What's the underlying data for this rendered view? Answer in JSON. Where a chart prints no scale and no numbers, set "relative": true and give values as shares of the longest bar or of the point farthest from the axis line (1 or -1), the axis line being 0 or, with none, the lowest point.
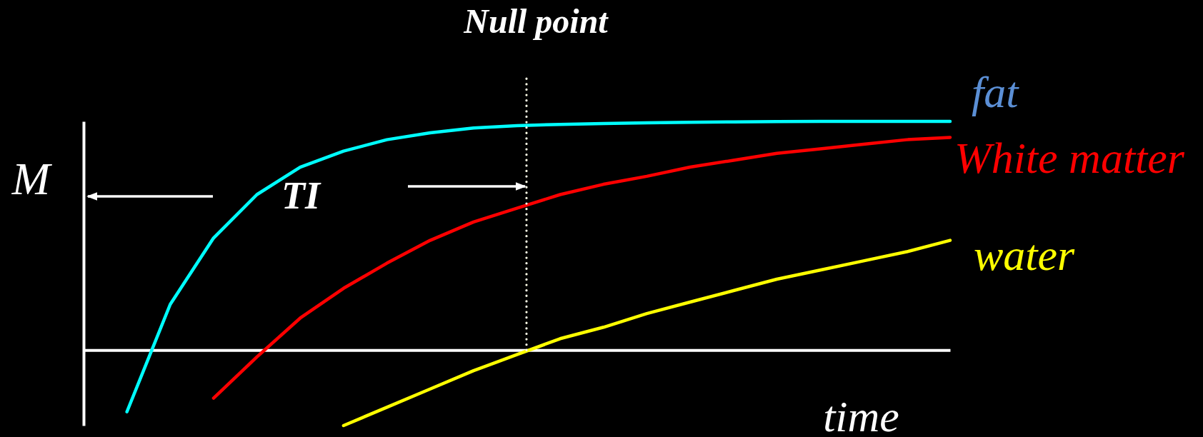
{
  "chart_data": {
    "type": "line",
    "relative": true,
    "xlabel": "time",
    "ylabel": "M",
    "categories": [
      null,
      null,
      null,
      null,
      null,
      null,
      null,
      null,
      null,
      null,
      null,
      null,
      null,
      null,
      null,
      null,
      null,
      null,
      null,
      null,
      null
    ],
    "series": [
      {
        "name": "fat",
        "color": "#00ffff",
        "values": [
          null,
          -0.27,
          0.2,
          0.49,
          0.68,
          0.8,
          0.87,
          0.92,
          0.95,
          0.971,
          0.981,
          0.987,
          0.991,
          0.994,
          0.996,
          0.998,
          0.999,
          1.0,
          1.0,
          1.0,
          1.0
        ]
      },
      {
        "name": "White matter",
        "color": "#ff0000",
        "values": [
          null,
          null,
          null,
          -0.21,
          -0.03,
          0.14,
          0.27,
          0.38,
          0.48,
          0.56,
          0.62,
          0.68,
          0.725,
          0.76,
          0.8,
          0.83,
          0.86,
          0.88,
          0.9,
          0.92,
          0.93
        ]
      },
      {
        "name": "water",
        "color": "#ffff00",
        "values": [
          null,
          null,
          null,
          null,
          null,
          null,
          -0.33,
          -0.25,
          -0.17,
          -0.09,
          -0.02,
          0.05,
          0.1,
          0.16,
          0.21,
          0.26,
          0.31,
          0.35,
          0.39,
          0.43,
          0.48
        ]
      }
    ],
    "annotations": [
      "Null point",
      "TI"
    ]
  }
}
